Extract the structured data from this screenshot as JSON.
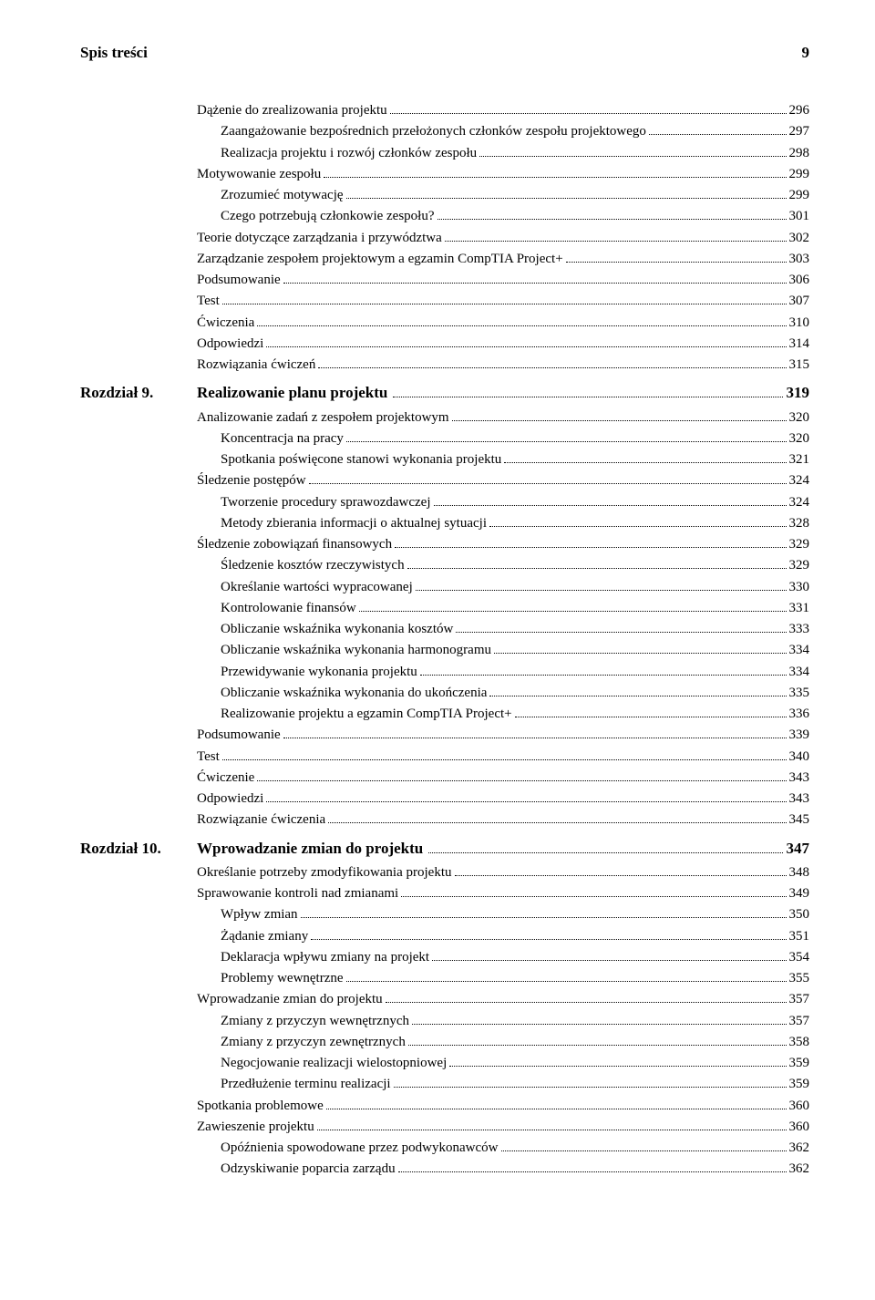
{
  "header": {
    "title": "Spis treści",
    "page": "9"
  },
  "entries": [
    {
      "type": "item",
      "indent": 0,
      "label": "Dążenie do zrealizowania projektu",
      "page": "296"
    },
    {
      "type": "item",
      "indent": 1,
      "label": "Zaangażowanie bezpośrednich przełożonych członków zespołu projektowego",
      "page": "297"
    },
    {
      "type": "item",
      "indent": 1,
      "label": "Realizacja projektu i rozwój członków zespołu",
      "page": "298"
    },
    {
      "type": "item",
      "indent": 0,
      "label": "Motywowanie zespołu",
      "page": "299"
    },
    {
      "type": "item",
      "indent": 1,
      "label": "Zrozumieć motywację",
      "page": "299"
    },
    {
      "type": "item",
      "indent": 1,
      "label": "Czego potrzebują członkowie zespołu?",
      "page": "301"
    },
    {
      "type": "item",
      "indent": 0,
      "label": "Teorie dotyczące zarządzania i przywództwa",
      "page": "302"
    },
    {
      "type": "item",
      "indent": 0,
      "label": "Zarządzanie zespołem projektowym a egzamin CompTIA Project+",
      "page": "303"
    },
    {
      "type": "item",
      "indent": 0,
      "label": "Podsumowanie",
      "page": "306"
    },
    {
      "type": "item",
      "indent": 0,
      "label": "Test",
      "page": "307"
    },
    {
      "type": "item",
      "indent": 0,
      "label": "Ćwiczenia",
      "page": "310"
    },
    {
      "type": "item",
      "indent": 0,
      "label": "Odpowiedzi",
      "page": "314"
    },
    {
      "type": "item",
      "indent": 0,
      "label": "Rozwiązania ćwiczeń",
      "page": "315"
    },
    {
      "type": "chapter",
      "prefix": "Rozdział 9.",
      "title": "Realizowanie planu projektu",
      "page": "319"
    },
    {
      "type": "item",
      "indent": 0,
      "label": "Analizowanie zadań z zespołem projektowym",
      "page": "320"
    },
    {
      "type": "item",
      "indent": 1,
      "label": "Koncentracja na pracy",
      "page": "320"
    },
    {
      "type": "item",
      "indent": 1,
      "label": "Spotkania poświęcone stanowi wykonania projektu",
      "page": "321"
    },
    {
      "type": "item",
      "indent": 0,
      "label": "Śledzenie postępów",
      "page": "324"
    },
    {
      "type": "item",
      "indent": 1,
      "label": "Tworzenie procedury sprawozdawczej",
      "page": "324"
    },
    {
      "type": "item",
      "indent": 1,
      "label": "Metody zbierania informacji o aktualnej sytuacji",
      "page": "328"
    },
    {
      "type": "item",
      "indent": 0,
      "label": "Śledzenie zobowiązań finansowych",
      "page": "329"
    },
    {
      "type": "item",
      "indent": 1,
      "label": "Śledzenie kosztów rzeczywistych",
      "page": "329"
    },
    {
      "type": "item",
      "indent": 1,
      "label": "Określanie wartości wypracowanej",
      "page": "330"
    },
    {
      "type": "item",
      "indent": 1,
      "label": "Kontrolowanie finansów",
      "page": "331"
    },
    {
      "type": "item",
      "indent": 1,
      "label": "Obliczanie wskaźnika wykonania kosztów",
      "page": "333"
    },
    {
      "type": "item",
      "indent": 1,
      "label": "Obliczanie wskaźnika wykonania harmonogramu",
      "page": "334"
    },
    {
      "type": "item",
      "indent": 1,
      "label": "Przewidywanie wykonania projektu",
      "page": "334"
    },
    {
      "type": "item",
      "indent": 1,
      "label": "Obliczanie wskaźnika wykonania do ukończenia",
      "page": "335"
    },
    {
      "type": "item",
      "indent": 1,
      "label": "Realizowanie projektu a egzamin CompTIA Project+",
      "page": "336"
    },
    {
      "type": "item",
      "indent": 0,
      "label": "Podsumowanie",
      "page": "339"
    },
    {
      "type": "item",
      "indent": 0,
      "label": "Test",
      "page": "340"
    },
    {
      "type": "item",
      "indent": 0,
      "label": "Ćwiczenie",
      "page": "343"
    },
    {
      "type": "item",
      "indent": 0,
      "label": "Odpowiedzi",
      "page": "343"
    },
    {
      "type": "item",
      "indent": 0,
      "label": "Rozwiązanie ćwiczenia",
      "page": "345"
    },
    {
      "type": "chapter",
      "prefix": "Rozdział 10.",
      "title": "Wprowadzanie zmian do projektu",
      "page": "347"
    },
    {
      "type": "item",
      "indent": 0,
      "label": "Określanie potrzeby zmodyfikowania projektu",
      "page": "348"
    },
    {
      "type": "item",
      "indent": 0,
      "label": "Sprawowanie kontroli nad zmianami",
      "page": "349"
    },
    {
      "type": "item",
      "indent": 1,
      "label": "Wpływ zmian",
      "page": "350"
    },
    {
      "type": "item",
      "indent": 1,
      "label": "Żądanie zmiany",
      "page": "351"
    },
    {
      "type": "item",
      "indent": 1,
      "label": "Deklaracja wpływu zmiany na projekt",
      "page": "354"
    },
    {
      "type": "item",
      "indent": 1,
      "label": "Problemy wewnętrzne",
      "page": "355"
    },
    {
      "type": "item",
      "indent": 0,
      "label": "Wprowadzanie zmian do projektu",
      "page": "357"
    },
    {
      "type": "item",
      "indent": 1,
      "label": "Zmiany z przyczyn wewnętrznych",
      "page": "357"
    },
    {
      "type": "item",
      "indent": 1,
      "label": "Zmiany z przyczyn zewnętrznych",
      "page": "358"
    },
    {
      "type": "item",
      "indent": 1,
      "label": "Negocjowanie realizacji wielostopniowej",
      "page": "359"
    },
    {
      "type": "item",
      "indent": 1,
      "label": "Przedłużenie terminu realizacji",
      "page": "359"
    },
    {
      "type": "item",
      "indent": 0,
      "label": "Spotkania problemowe",
      "page": "360"
    },
    {
      "type": "item",
      "indent": 0,
      "label": "Zawieszenie projektu",
      "page": "360"
    },
    {
      "type": "item",
      "indent": 1,
      "label": "Opóźnienia spowodowane przez podwykonawców",
      "page": "362"
    },
    {
      "type": "item",
      "indent": 1,
      "label": "Odzyskiwanie poparcia zarządu",
      "page": "362"
    }
  ]
}
